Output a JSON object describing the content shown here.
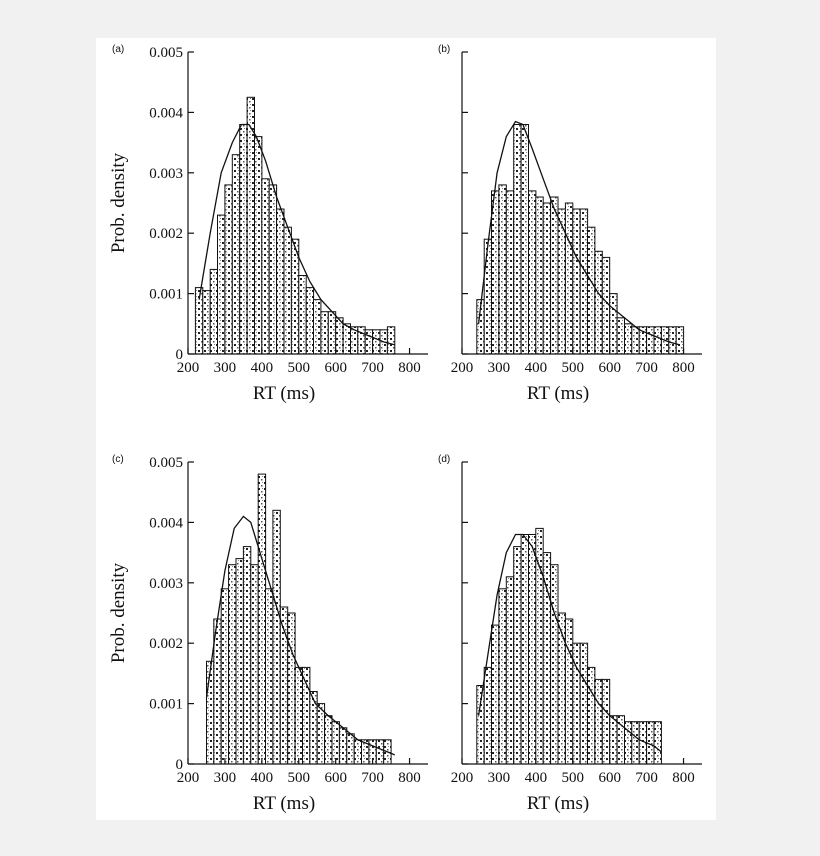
{
  "colors": {
    "background": "#f1f1f1",
    "figure": "#ffffff",
    "ink": "#111111"
  },
  "chart_data": [
    {
      "type": "bar",
      "panel_label": "(a)",
      "xlabel": "RT (ms)",
      "ylabel": "Prob. density",
      "xlim": [
        200,
        850
      ],
      "ylim": [
        0,
        0.005
      ],
      "xticks": [
        "200",
        "300",
        "400",
        "500",
        "600",
        "700",
        "800"
      ],
      "yticks": [
        "0",
        "0.001",
        "0.002",
        "0.003",
        "0.004",
        "0.005"
      ],
      "show_ytick_labels": true,
      "bar_width": 20,
      "bins": [
        [
          220,
          0.0011
        ],
        [
          240,
          0.00105
        ],
        [
          260,
          0.0014
        ],
        [
          280,
          0.0023
        ],
        [
          300,
          0.0028
        ],
        [
          320,
          0.0033
        ],
        [
          340,
          0.0038
        ],
        [
          360,
          0.00425
        ],
        [
          380,
          0.0036
        ],
        [
          400,
          0.0029
        ],
        [
          420,
          0.0028
        ],
        [
          440,
          0.0024
        ],
        [
          460,
          0.0021
        ],
        [
          480,
          0.0019
        ],
        [
          500,
          0.0013
        ],
        [
          520,
          0.0011
        ],
        [
          540,
          0.0009
        ],
        [
          560,
          0.0007
        ],
        [
          580,
          0.0007
        ],
        [
          600,
          0.0006
        ],
        [
          620,
          0.0005
        ],
        [
          640,
          0.00045
        ],
        [
          660,
          0.00045
        ],
        [
          680,
          0.0004
        ],
        [
          700,
          0.0004
        ],
        [
          720,
          0.0004
        ],
        [
          740,
          0.00045
        ]
      ],
      "fit_curve": [
        [
          230,
          0.0009
        ],
        [
          260,
          0.002
        ],
        [
          290,
          0.003
        ],
        [
          320,
          0.0035
        ],
        [
          345,
          0.0038
        ],
        [
          365,
          0.0038
        ],
        [
          385,
          0.0036
        ],
        [
          410,
          0.0032
        ],
        [
          440,
          0.0026
        ],
        [
          470,
          0.0021
        ],
        [
          500,
          0.0016
        ],
        [
          530,
          0.0012
        ],
        [
          560,
          0.0009
        ],
        [
          590,
          0.0007
        ],
        [
          620,
          0.0005
        ],
        [
          650,
          0.0004
        ],
        [
          690,
          0.0003
        ],
        [
          730,
          0.0002
        ],
        [
          760,
          0.00015
        ]
      ]
    },
    {
      "type": "bar",
      "panel_label": "(b)",
      "xlabel": "RT (ms)",
      "ylabel": "",
      "xlim": [
        200,
        850
      ],
      "ylim": [
        0,
        0.005
      ],
      "xticks": [
        "200",
        "300",
        "400",
        "500",
        "600",
        "700",
        "800"
      ],
      "yticks": [
        "",
        "",
        "",
        "",
        "",
        ""
      ],
      "show_ytick_labels": false,
      "bar_width": 20,
      "bins": [
        [
          240,
          0.0009
        ],
        [
          260,
          0.0019
        ],
        [
          280,
          0.0027
        ],
        [
          300,
          0.0028
        ],
        [
          320,
          0.0027
        ],
        [
          340,
          0.0038
        ],
        [
          360,
          0.0038
        ],
        [
          380,
          0.0027
        ],
        [
          400,
          0.0026
        ],
        [
          420,
          0.0025
        ],
        [
          440,
          0.0026
        ],
        [
          460,
          0.0024
        ],
        [
          480,
          0.0025
        ],
        [
          500,
          0.0024
        ],
        [
          520,
          0.0024
        ],
        [
          540,
          0.0021
        ],
        [
          560,
          0.0017
        ],
        [
          580,
          0.0016
        ],
        [
          600,
          0.001
        ],
        [
          620,
          0.0006
        ],
        [
          640,
          0.0005
        ],
        [
          660,
          0.00045
        ],
        [
          680,
          0.00045
        ],
        [
          700,
          0.00045
        ],
        [
          720,
          0.00045
        ],
        [
          740,
          0.00045
        ],
        [
          760,
          0.00045
        ],
        [
          780,
          0.00045
        ]
      ],
      "fit_curve": [
        [
          245,
          0.0005
        ],
        [
          270,
          0.0018
        ],
        [
          295,
          0.003
        ],
        [
          320,
          0.0036
        ],
        [
          345,
          0.00385
        ],
        [
          365,
          0.0038
        ],
        [
          390,
          0.0034
        ],
        [
          420,
          0.0029
        ],
        [
          450,
          0.0024
        ],
        [
          480,
          0.002
        ],
        [
          510,
          0.0016
        ],
        [
          540,
          0.0013
        ],
        [
          570,
          0.001
        ],
        [
          600,
          0.0008
        ],
        [
          640,
          0.0006
        ],
        [
          680,
          0.0004
        ],
        [
          720,
          0.0003
        ],
        [
          760,
          0.0002
        ],
        [
          790,
          0.00015
        ]
      ]
    },
    {
      "type": "bar",
      "panel_label": "(c)",
      "xlabel": "RT (ms)",
      "ylabel": "Prob. density",
      "xlim": [
        200,
        850
      ],
      "ylim": [
        0,
        0.005
      ],
      "xticks": [
        "200",
        "300",
        "400",
        "500",
        "600",
        "700",
        "800"
      ],
      "yticks": [
        "0",
        "0.001",
        "0.002",
        "0.003",
        "0.004",
        "0.005"
      ],
      "show_ytick_labels": true,
      "bar_width": 20,
      "bins": [
        [
          250,
          0.0017
        ],
        [
          270,
          0.0024
        ],
        [
          290,
          0.0029
        ],
        [
          310,
          0.0033
        ],
        [
          330,
          0.0034
        ],
        [
          350,
          0.0036
        ],
        [
          370,
          0.0033
        ],
        [
          390,
          0.0048
        ],
        [
          410,
          0.0029
        ],
        [
          430,
          0.0042
        ],
        [
          450,
          0.0026
        ],
        [
          470,
          0.0025
        ],
        [
          490,
          0.0016
        ],
        [
          510,
          0.0016
        ],
        [
          530,
          0.0012
        ],
        [
          550,
          0.001
        ],
        [
          570,
          0.0008
        ],
        [
          590,
          0.0007
        ],
        [
          610,
          0.0006
        ],
        [
          630,
          0.0005
        ],
        [
          650,
          0.0004
        ],
        [
          670,
          0.0004
        ],
        [
          690,
          0.0004
        ],
        [
          710,
          0.0004
        ],
        [
          730,
          0.0004
        ]
      ],
      "fit_curve": [
        [
          250,
          0.0011
        ],
        [
          275,
          0.0022
        ],
        [
          300,
          0.0032
        ],
        [
          325,
          0.0039
        ],
        [
          350,
          0.0041
        ],
        [
          370,
          0.004
        ],
        [
          395,
          0.0035
        ],
        [
          425,
          0.0029
        ],
        [
          455,
          0.0023
        ],
        [
          485,
          0.0018
        ],
        [
          515,
          0.0014
        ],
        [
          545,
          0.001
        ],
        [
          580,
          0.0008
        ],
        [
          620,
          0.0006
        ],
        [
          660,
          0.0004
        ],
        [
          700,
          0.0003
        ],
        [
          740,
          0.0002
        ],
        [
          760,
          0.00015
        ]
      ]
    },
    {
      "type": "bar",
      "panel_label": "(d)",
      "xlabel": "RT (ms)",
      "ylabel": "",
      "xlim": [
        200,
        850
      ],
      "ylim": [
        0,
        0.005
      ],
      "xticks": [
        "200",
        "300",
        "400",
        "500",
        "600",
        "700",
        "800"
      ],
      "yticks": [
        "",
        "",
        "",
        "",
        "",
        ""
      ],
      "show_ytick_labels": false,
      "bar_width": 20,
      "bins": [
        [
          240,
          0.0013
        ],
        [
          260,
          0.0016
        ],
        [
          280,
          0.0023
        ],
        [
          300,
          0.0029
        ],
        [
          320,
          0.0031
        ],
        [
          340,
          0.0036
        ],
        [
          360,
          0.0038
        ],
        [
          380,
          0.0038
        ],
        [
          400,
          0.0039
        ],
        [
          420,
          0.0035
        ],
        [
          440,
          0.0033
        ],
        [
          460,
          0.0025
        ],
        [
          480,
          0.0024
        ],
        [
          500,
          0.002
        ],
        [
          520,
          0.002
        ],
        [
          540,
          0.0016
        ],
        [
          560,
          0.0014
        ],
        [
          580,
          0.0014
        ],
        [
          600,
          0.0008
        ],
        [
          620,
          0.0008
        ],
        [
          640,
          0.0007
        ],
        [
          660,
          0.0007
        ],
        [
          680,
          0.0007
        ],
        [
          700,
          0.0007
        ],
        [
          720,
          0.0007
        ]
      ],
      "fit_curve": [
        [
          245,
          0.0008
        ],
        [
          270,
          0.0018
        ],
        [
          295,
          0.0028
        ],
        [
          320,
          0.0035
        ],
        [
          345,
          0.0038
        ],
        [
          365,
          0.0038
        ],
        [
          390,
          0.0036
        ],
        [
          420,
          0.0031
        ],
        [
          450,
          0.0025
        ],
        [
          480,
          0.002
        ],
        [
          510,
          0.0016
        ],
        [
          540,
          0.0013
        ],
        [
          570,
          0.001
        ],
        [
          600,
          0.0008
        ],
        [
          640,
          0.0006
        ],
        [
          680,
          0.0004
        ],
        [
          720,
          0.0003
        ],
        [
          740,
          0.0002
        ]
      ]
    }
  ]
}
